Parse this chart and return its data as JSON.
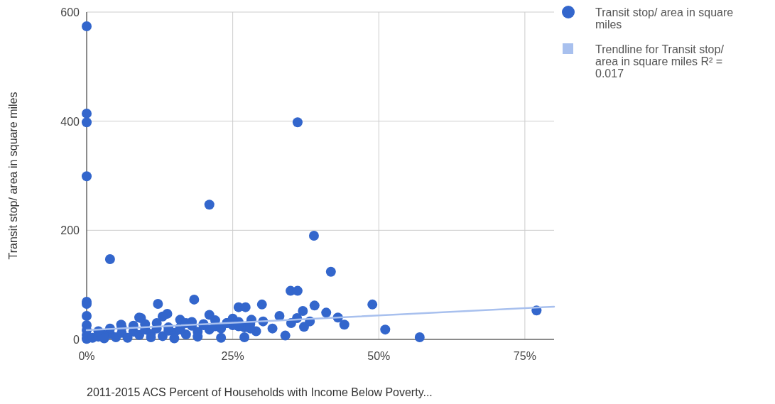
{
  "chart_data": {
    "type": "scatter",
    "xlabel": "2011-2015 ACS Percent of Households with Income Below Poverty...",
    "ylabel": "Transit stop/ area in square miles",
    "xlim": [
      0,
      80
    ],
    "ylim": [
      0,
      600
    ],
    "xticks": [
      {
        "value": 0,
        "label": "0%"
      },
      {
        "value": 25,
        "label": "25%"
      },
      {
        "value": 50,
        "label": "50%"
      },
      {
        "value": 75,
        "label": "75%"
      }
    ],
    "yticks": [
      0,
      200,
      400,
      600
    ],
    "grid": true,
    "legend": "top right",
    "marker": "circle",
    "series": [
      {
        "name": "Transit stop/ area in square miles",
        "color": "#3366cc",
        "x": [
          0,
          0,
          0,
          0,
          0,
          0,
          0,
          0,
          0,
          0,
          0,
          4,
          21,
          36.1,
          38.9,
          41.8,
          34.9,
          36.1,
          30,
          39,
          37,
          41,
          48.9,
          51.1,
          57,
          77,
          34,
          43,
          44.1,
          12.2,
          18.4,
          13.8,
          9.3,
          16,
          5.9,
          26,
          27.2,
          30.2,
          31.8,
          33,
          35,
          36,
          37.2,
          38.2,
          28.2,
          1,
          2,
          3,
          4,
          5,
          6,
          8,
          9,
          10,
          11,
          12,
          13,
          14,
          15,
          16,
          17,
          18,
          19,
          20,
          21,
          22,
          23,
          24,
          25,
          26,
          27,
          28,
          29,
          2,
          4,
          6,
          8,
          10,
          12,
          14,
          16,
          18,
          20,
          22,
          24,
          26,
          28,
          3,
          7,
          11,
          15,
          19,
          23,
          27,
          9,
          13,
          17,
          21,
          25
        ],
        "values": [
          574,
          414,
          398,
          299,
          69,
          65,
          43,
          26,
          17,
          8,
          1,
          147,
          247,
          398,
          190,
          124,
          89,
          89,
          64,
          62,
          52,
          49,
          64,
          18,
          4,
          53,
          7,
          40,
          27,
          65,
          73,
          47,
          39,
          36,
          27,
          59,
          59,
          33,
          20,
          43,
          30,
          39,
          23,
          33,
          36,
          3,
          5,
          8,
          10,
          4,
          12,
          14,
          8,
          18,
          10,
          20,
          6,
          16,
          12,
          22,
          9,
          25,
          14,
          28,
          18,
          24,
          20,
          30,
          26,
          32,
          22,
          28,
          15,
          15,
          20,
          22,
          25,
          28,
          30,
          22,
          18,
          32,
          26,
          35,
          30,
          24,
          20,
          2,
          3,
          4,
          2,
          5,
          3,
          4,
          40,
          42,
          30,
          45,
          38
        ]
      },
      {
        "name": "Trendline for Transit stop/ area in square miles R² = 0.017",
        "type": "line",
        "marker": "none",
        "color": "#a8c0ee",
        "x": [
          0,
          80
        ],
        "values": [
          17,
          60
        ]
      }
    ]
  }
}
